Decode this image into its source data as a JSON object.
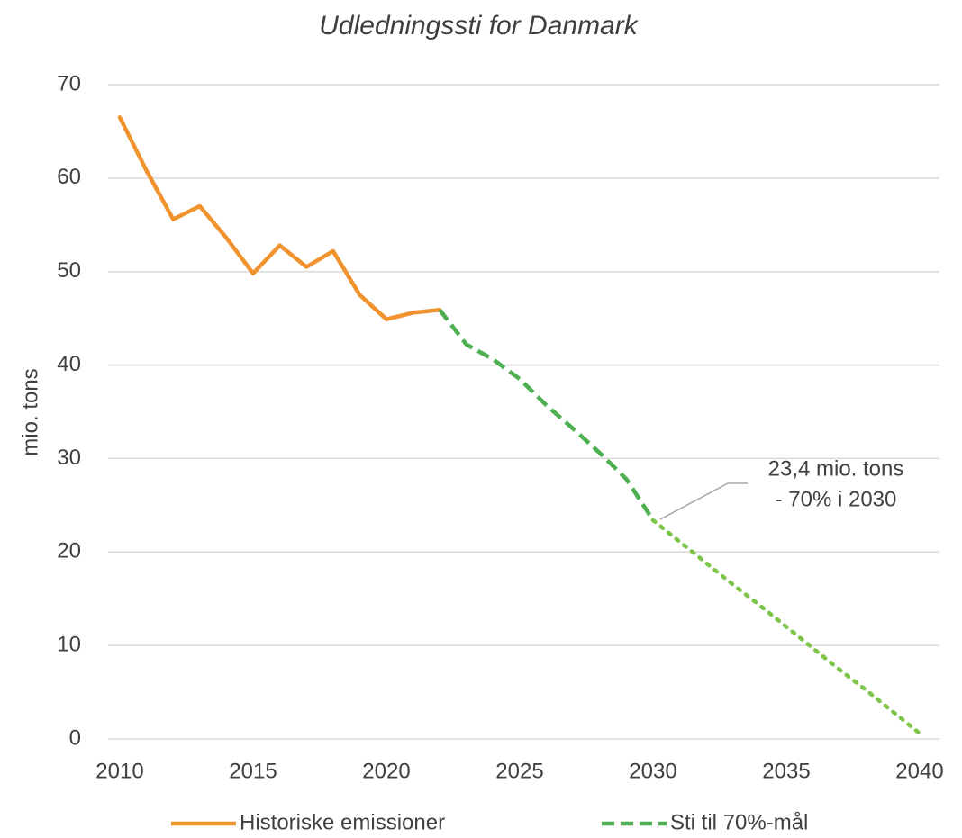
{
  "chart_data": {
    "type": "line",
    "title": "Udledningssti for Danmark",
    "y_label": "mio. tons",
    "x": [
      2010,
      2011,
      2012,
      2013,
      2014,
      2015,
      2016,
      2017,
      2018,
      2019,
      2020,
      2021,
      2022,
      2023,
      2024,
      2025,
      2026,
      2027,
      2028,
      2029,
      2030,
      2031,
      2032,
      2033,
      2034,
      2035,
      2036,
      2037,
      2038,
      2039,
      2040
    ],
    "xlim": [
      2010,
      2040
    ],
    "xticks": [
      2010,
      2015,
      2020,
      2025,
      2030,
      2035,
      2040
    ],
    "ylim": [
      0,
      70
    ],
    "yticks": [
      0,
      10,
      20,
      30,
      40,
      50,
      60,
      70
    ],
    "grid": true,
    "legend": "bottom",
    "series": [
      {
        "name": "Historiske emissioner",
        "color": "#f0922e",
        "style": "solid",
        "values": [
          66.5,
          60.8,
          55.6,
          57.0,
          53.6,
          49.8,
          52.8,
          50.5,
          52.2,
          47.5,
          44.9,
          45.6,
          45.9,
          null,
          null,
          null,
          null,
          null,
          null,
          null,
          null,
          null,
          null,
          null,
          null,
          null,
          null,
          null,
          null,
          null,
          null
        ]
      },
      {
        "name": "Sti til 70%-mål",
        "color": "#4caf50",
        "style": "dashed",
        "values": [
          null,
          null,
          null,
          null,
          null,
          null,
          null,
          null,
          null,
          null,
          null,
          null,
          45.9,
          42.2,
          40.6,
          38.5,
          35.7,
          33.2,
          30.6,
          27.8,
          23.4,
          null,
          null,
          null,
          null,
          null,
          null,
          null,
          null,
          null,
          null
        ]
      },
      {
        "color": "#7dc54a",
        "style": "dotted",
        "values": [
          null,
          null,
          null,
          null,
          null,
          null,
          null,
          null,
          null,
          null,
          null,
          null,
          null,
          null,
          null,
          null,
          null,
          null,
          null,
          null,
          23.4,
          21.1,
          18.8,
          16.5,
          14.3,
          12.0,
          9.7,
          7.4,
          5.2,
          2.9,
          0.6
        ]
      }
    ],
    "annotation": [
      "23,4 mio. tons",
      "- 70% i 2030"
    ]
  }
}
